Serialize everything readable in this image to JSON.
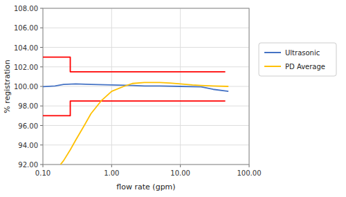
{
  "chart_data": {
    "type": "line",
    "xlabel": "flow rate (gpm)",
    "ylabel": "% registration",
    "log": "x",
    "grid": true,
    "legend": "right",
    "xlim": [
      0.1,
      100.0
    ],
    "ylim": [
      92.0,
      108.0
    ],
    "xticks": [
      {
        "value": 0.1,
        "label": "0.10"
      },
      {
        "value": 1.0,
        "label": "1.00"
      },
      {
        "value": 10.0,
        "label": "10.00"
      },
      {
        "value": 100.0,
        "label": "100.00"
      }
    ],
    "yticks": [
      {
        "value": 92.0,
        "label": "92.00"
      },
      {
        "value": 94.0,
        "label": "94.00"
      },
      {
        "value": 96.0,
        "label": "96.00"
      },
      {
        "value": 98.0,
        "label": "98.00"
      },
      {
        "value": 100.0,
        "label": "100.00"
      },
      {
        "value": 102.0,
        "label": "102.00"
      },
      {
        "value": 104.0,
        "label": "104.00"
      },
      {
        "value": 106.0,
        "label": "106.00"
      },
      {
        "value": 108.0,
        "label": "108.00"
      }
    ],
    "series": [
      {
        "color": "#FF0000",
        "x": [
          0.1,
          0.25,
          0.25,
          45.0
        ],
        "values": [
          103.0,
          103.0,
          101.5,
          101.5
        ]
      },
      {
        "color": "#FF0000",
        "x": [
          0.1,
          0.25,
          0.25,
          45.0
        ],
        "values": [
          97.0,
          97.0,
          98.5,
          98.5
        ]
      },
      {
        "name": "Ultrasonic",
        "color": "#4472C4",
        "x": [
          0.1,
          0.15,
          0.2,
          0.3,
          0.5,
          1.0,
          2.0,
          3.0,
          5.0,
          10.0,
          20.0,
          30.0,
          50.0
        ],
        "values": [
          99.98,
          100.05,
          100.2,
          100.25,
          100.2,
          100.15,
          100.1,
          100.05,
          100.05,
          100.0,
          99.95,
          99.7,
          99.5
        ]
      },
      {
        "name": "PD Average",
        "color": "#FFC000",
        "x": [
          0.18,
          0.2,
          0.25,
          0.3,
          0.4,
          0.5,
          0.7,
          1.0,
          1.5,
          2.0,
          3.0,
          5.0,
          7.0,
          10.0,
          15.0,
          20.0,
          30.0,
          50.0
        ],
        "values": [
          92.0,
          92.4,
          93.5,
          94.5,
          96.0,
          97.2,
          98.5,
          99.5,
          100.0,
          100.3,
          100.4,
          100.4,
          100.35,
          100.25,
          100.15,
          100.1,
          100.05,
          100.0
        ]
      }
    ]
  }
}
